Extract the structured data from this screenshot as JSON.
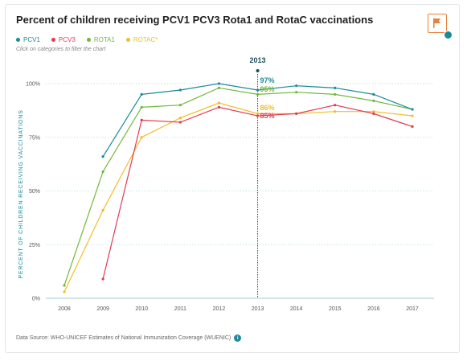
{
  "title": "Percent of children receiving PCV1 PCV3 Rota1 and RotaC vaccinations",
  "hint": "Click on categories to filter the chart",
  "source_text": "Data Source: WHO-UNICEF Estimates of National Immunization Coverage (WUENIC)",
  "info_icon_glyph": "i",
  "icons": {
    "flag": "flag-icon",
    "info": "info-icon"
  },
  "colors": {
    "accent": "#e8823a",
    "teal": "#1a8a99"
  },
  "chart_data": {
    "type": "line",
    "title": "Percent of children receiving PCV1 PCV3 Rota1 and RotaC vaccinations",
    "xlabel": "",
    "ylabel": "PERCENT OF CHILDREN RECEIVING VACCINATIONS",
    "x": [
      "2008",
      "2009",
      "2010",
      "2011",
      "2012",
      "2013",
      "2014",
      "2015",
      "2016",
      "2017"
    ],
    "ylim": [
      0,
      100
    ],
    "yticks": [
      0,
      25,
      50,
      75,
      100
    ],
    "ytick_labels": [
      "0%",
      "25%",
      "50%",
      "75%",
      "100%"
    ],
    "grid": true,
    "legend_position": "top-left",
    "series": [
      {
        "name": "PCV1",
        "color": "#1a8a99",
        "values": [
          null,
          66,
          95,
          97,
          100,
          97,
          99,
          98,
          95,
          88
        ]
      },
      {
        "name": "PCV3",
        "color": "#e23a4f",
        "values": [
          null,
          9,
          83,
          82,
          89,
          85,
          86,
          90,
          86,
          80
        ]
      },
      {
        "name": "ROTA1",
        "color": "#72b83b",
        "values": [
          6,
          59,
          89,
          90,
          98,
          95,
          96,
          95,
          92,
          88
        ]
      },
      {
        "name": "ROTAC*",
        "color": "#f2bd2a",
        "values": [
          3,
          41,
          75,
          84,
          91,
          86,
          86,
          87,
          87,
          85
        ]
      }
    ],
    "highlight": {
      "x": "2013",
      "label": "2013",
      "values": [
        {
          "series": "PCV1",
          "label": "97%"
        },
        {
          "series": "ROTA1",
          "label": "95%"
        },
        {
          "series": "ROTAC*",
          "label": "86%"
        },
        {
          "series": "PCV3",
          "label": "85%"
        }
      ]
    }
  }
}
